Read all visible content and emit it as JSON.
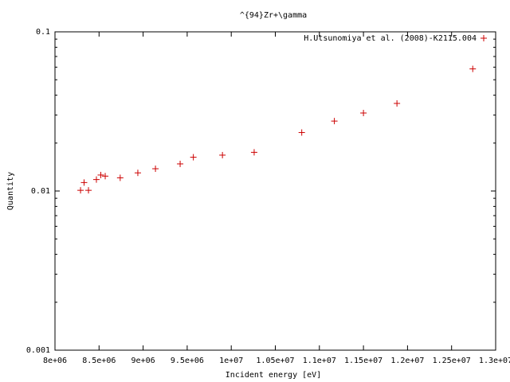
{
  "chart_data": {
    "type": "scatter",
    "title": "^{94}Zr+\\gamma",
    "xlabel": "Incident energy [eV]",
    "ylabel": "Quantity",
    "xlim": [
      8000000,
      13000000
    ],
    "ylim": [
      0.001,
      0.1
    ],
    "yscale": "log",
    "grid": false,
    "legend_position": "top-right",
    "x_ticks": [
      {
        "value": 8000000,
        "label": "8e+06"
      },
      {
        "value": 8500000,
        "label": "8.5e+06"
      },
      {
        "value": 9000000,
        "label": "9e+06"
      },
      {
        "value": 9500000,
        "label": "9.5e+06"
      },
      {
        "value": 10000000,
        "label": "1e+07"
      },
      {
        "value": 10500000,
        "label": "1.05e+07"
      },
      {
        "value": 11000000,
        "label": "1.1e+07"
      },
      {
        "value": 11500000,
        "label": "1.15e+07"
      },
      {
        "value": 12000000,
        "label": "1.2e+07"
      },
      {
        "value": 12500000,
        "label": "1.25e+07"
      },
      {
        "value": 13000000,
        "label": "1.3e+07"
      }
    ],
    "y_ticks": [
      {
        "value": 0.001,
        "label": "0.001"
      },
      {
        "value": 0.01,
        "label": "0.01"
      },
      {
        "value": 0.1,
        "label": "0.1"
      }
    ],
    "series": [
      {
        "name": "H.Utsunomiya et al. (2008)-K2115.004",
        "color": "#cc0000",
        "marker": "plus",
        "x": [
          8290000,
          8330000,
          8380000,
          8470000,
          8520000,
          8570000,
          8740000,
          8940000,
          9140000,
          9420000,
          9570000,
          9900000,
          10260000,
          10800000,
          11170000,
          11500000,
          11880000,
          12740000
        ],
        "y": [
          0.0101,
          0.0113,
          0.0101,
          0.0118,
          0.0126,
          0.0124,
          0.0121,
          0.013,
          0.0138,
          0.0148,
          0.0163,
          0.0168,
          0.0175,
          0.0233,
          0.0275,
          0.0309,
          0.0355,
          0.0585
        ]
      }
    ]
  }
}
